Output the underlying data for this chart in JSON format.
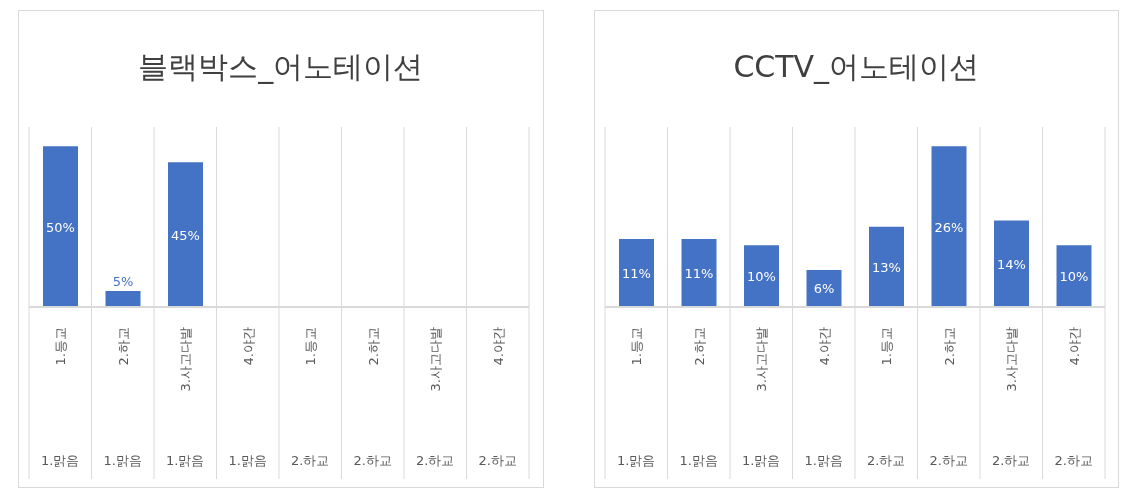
{
  "chart_data": [
    {
      "type": "bar",
      "title": "블랙박스_어노테이션",
      "categories": [
        "1.등교",
        "2.하교",
        "3.사고다발",
        "4.야간",
        "1.등교",
        "2.하교",
        "3.사고다발",
        "4.야간"
      ],
      "values": [
        50,
        5,
        45,
        0,
        0,
        0,
        0,
        0
      ],
      "color": "#4472c4",
      "value_labels": [
        "50%",
        "5%",
        "45%",
        null,
        null,
        null,
        null,
        null
      ],
      "annotations": [
        "1.맑음",
        "1.맑음",
        "1.맑음",
        "1.맑음",
        "2.하교",
        "2.하교",
        "2.하교",
        "2.하교"
      ],
      "grid": "x"
    },
    {
      "type": "bar",
      "title": "CCTV_어노테이션",
      "categories": [
        "1.등교",
        "2.하교",
        "3.사고다발",
        "4.야간",
        "1.등교",
        "2.하교",
        "3.사고다발",
        "4.야간"
      ],
      "values": [
        11,
        11,
        10,
        6,
        13,
        26,
        14,
        10
      ],
      "color": "#4472c4",
      "value_labels": [
        "11%",
        "11%",
        "10%",
        "6%",
        "13%",
        "26%",
        "14%",
        "10%"
      ],
      "annotations": [
        "1.맑음",
        "1.맑음",
        "1.맑음",
        "1.맑음",
        "2.하교",
        "2.하교",
        "2.하교",
        "2.하교"
      ],
      "grid": "x"
    }
  ]
}
